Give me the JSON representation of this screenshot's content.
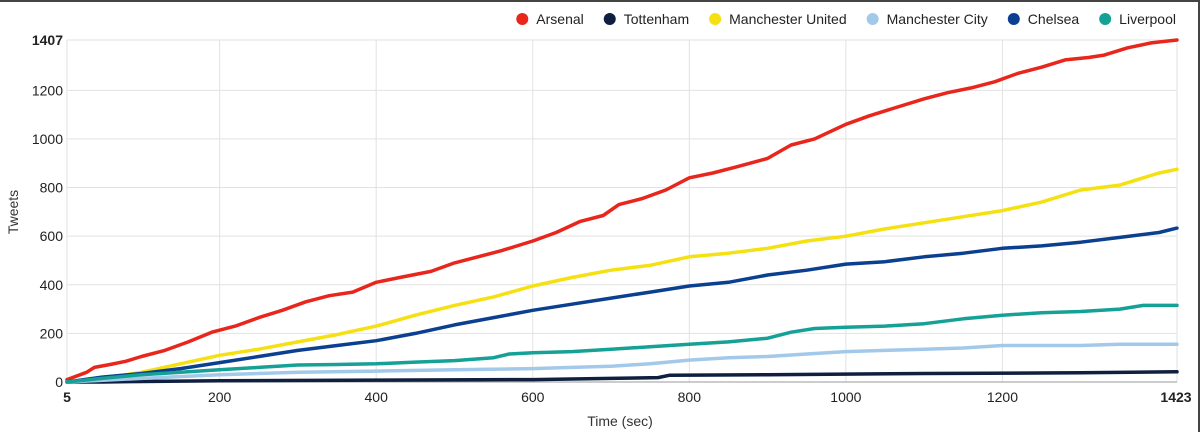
{
  "chart_data": {
    "type": "line",
    "xlabel": "Time (sec)",
    "ylabel": "Tweets",
    "xlim": [
      5,
      1423
    ],
    "ylim": [
      0,
      1407
    ],
    "x_ticks": [
      5,
      200,
      400,
      600,
      800,
      1000,
      1200,
      1423
    ],
    "x_ticks_bold": [
      5,
      1423
    ],
    "y_ticks": [
      0,
      200,
      400,
      600,
      800,
      1000,
      1200,
      1407
    ],
    "y_ticks_bold": [
      1407
    ],
    "grid": true,
    "legend_position": "top-right",
    "series": [
      {
        "name": "Arsenal",
        "color": "#e8261c",
        "points": [
          [
            5,
            10
          ],
          [
            30,
            40
          ],
          [
            40,
            60
          ],
          [
            60,
            72
          ],
          [
            80,
            85
          ],
          [
            100,
            105
          ],
          [
            130,
            130
          ],
          [
            160,
            165
          ],
          [
            190,
            205
          ],
          [
            220,
            230
          ],
          [
            250,
            265
          ],
          [
            280,
            295
          ],
          [
            310,
            330
          ],
          [
            340,
            355
          ],
          [
            370,
            370
          ],
          [
            400,
            410
          ],
          [
            430,
            430
          ],
          [
            470,
            455
          ],
          [
            500,
            490
          ],
          [
            530,
            515
          ],
          [
            560,
            540
          ],
          [
            600,
            580
          ],
          [
            630,
            615
          ],
          [
            660,
            660
          ],
          [
            690,
            685
          ],
          [
            710,
            730
          ],
          [
            740,
            755
          ],
          [
            770,
            790
          ],
          [
            800,
            840
          ],
          [
            830,
            860
          ],
          [
            860,
            885
          ],
          [
            900,
            920
          ],
          [
            930,
            975
          ],
          [
            960,
            1000
          ],
          [
            1000,
            1060
          ],
          [
            1030,
            1095
          ],
          [
            1060,
            1125
          ],
          [
            1100,
            1165
          ],
          [
            1130,
            1190
          ],
          [
            1160,
            1210
          ],
          [
            1190,
            1235
          ],
          [
            1220,
            1270
          ],
          [
            1250,
            1295
          ],
          [
            1280,
            1325
          ],
          [
            1310,
            1335
          ],
          [
            1330,
            1345
          ],
          [
            1360,
            1375
          ],
          [
            1390,
            1395
          ],
          [
            1423,
            1407
          ]
        ]
      },
      {
        "name": "Tottenham",
        "color": "#0f1f3f",
        "points": [
          [
            5,
            0
          ],
          [
            50,
            0
          ],
          [
            100,
            2
          ],
          [
            200,
            5
          ],
          [
            400,
            8
          ],
          [
            600,
            10
          ],
          [
            700,
            15
          ],
          [
            760,
            18
          ],
          [
            775,
            28
          ],
          [
            900,
            30
          ],
          [
            1100,
            35
          ],
          [
            1300,
            38
          ],
          [
            1423,
            42
          ]
        ]
      },
      {
        "name": "Manchester United",
        "color": "#f5e012",
        "points": [
          [
            5,
            0
          ],
          [
            50,
            15
          ],
          [
            100,
            40
          ],
          [
            150,
            75
          ],
          [
            200,
            110
          ],
          [
            250,
            135
          ],
          [
            300,
            165
          ],
          [
            350,
            195
          ],
          [
            400,
            230
          ],
          [
            450,
            275
          ],
          [
            500,
            315
          ],
          [
            550,
            350
          ],
          [
            600,
            395
          ],
          [
            650,
            430
          ],
          [
            700,
            460
          ],
          [
            750,
            480
          ],
          [
            800,
            515
          ],
          [
            850,
            530
          ],
          [
            900,
            550
          ],
          [
            950,
            580
          ],
          [
            1000,
            600
          ],
          [
            1050,
            630
          ],
          [
            1100,
            655
          ],
          [
            1150,
            680
          ],
          [
            1200,
            705
          ],
          [
            1250,
            740
          ],
          [
            1300,
            790
          ],
          [
            1350,
            810
          ],
          [
            1400,
            860
          ],
          [
            1423,
            875
          ]
        ]
      },
      {
        "name": "Manchester City",
        "color": "#a3c9ea",
        "points": [
          [
            5,
            0
          ],
          [
            100,
            15
          ],
          [
            200,
            30
          ],
          [
            300,
            40
          ],
          [
            400,
            45
          ],
          [
            500,
            50
          ],
          [
            600,
            55
          ],
          [
            650,
            60
          ],
          [
            700,
            65
          ],
          [
            750,
            75
          ],
          [
            800,
            90
          ],
          [
            850,
            100
          ],
          [
            900,
            105
          ],
          [
            950,
            115
          ],
          [
            1000,
            125
          ],
          [
            1050,
            130
          ],
          [
            1100,
            135
          ],
          [
            1150,
            140
          ],
          [
            1200,
            150
          ],
          [
            1250,
            150
          ],
          [
            1300,
            150
          ],
          [
            1350,
            155
          ],
          [
            1423,
            155
          ]
        ]
      },
      {
        "name": "Chelsea",
        "color": "#0b3f8f",
        "points": [
          [
            5,
            0
          ],
          [
            50,
            20
          ],
          [
            100,
            35
          ],
          [
            150,
            55
          ],
          [
            200,
            80
          ],
          [
            250,
            105
          ],
          [
            300,
            130
          ],
          [
            350,
            150
          ],
          [
            400,
            170
          ],
          [
            450,
            200
          ],
          [
            500,
            235
          ],
          [
            550,
            265
          ],
          [
            600,
            295
          ],
          [
            650,
            320
          ],
          [
            700,
            345
          ],
          [
            750,
            370
          ],
          [
            800,
            395
          ],
          [
            850,
            410
          ],
          [
            900,
            440
          ],
          [
            950,
            460
          ],
          [
            1000,
            485
          ],
          [
            1050,
            495
          ],
          [
            1100,
            515
          ],
          [
            1150,
            530
          ],
          [
            1200,
            550
          ],
          [
            1250,
            560
          ],
          [
            1300,
            575
          ],
          [
            1350,
            595
          ],
          [
            1400,
            615
          ],
          [
            1423,
            633
          ]
        ]
      },
      {
        "name": "Liverpool",
        "color": "#16a196",
        "points": [
          [
            5,
            0
          ],
          [
            50,
            15
          ],
          [
            100,
            30
          ],
          [
            150,
            40
          ],
          [
            200,
            50
          ],
          [
            250,
            60
          ],
          [
            300,
            70
          ],
          [
            350,
            72
          ],
          [
            400,
            75
          ],
          [
            450,
            82
          ],
          [
            500,
            88
          ],
          [
            550,
            100
          ],
          [
            570,
            115
          ],
          [
            600,
            120
          ],
          [
            650,
            125
          ],
          [
            700,
            135
          ],
          [
            750,
            145
          ],
          [
            800,
            155
          ],
          [
            850,
            165
          ],
          [
            900,
            180
          ],
          [
            930,
            205
          ],
          [
            960,
            220
          ],
          [
            1000,
            225
          ],
          [
            1050,
            230
          ],
          [
            1100,
            240
          ],
          [
            1150,
            260
          ],
          [
            1200,
            275
          ],
          [
            1250,
            285
          ],
          [
            1300,
            290
          ],
          [
            1350,
            300
          ],
          [
            1380,
            315
          ],
          [
            1423,
            315
          ]
        ]
      }
    ]
  }
}
